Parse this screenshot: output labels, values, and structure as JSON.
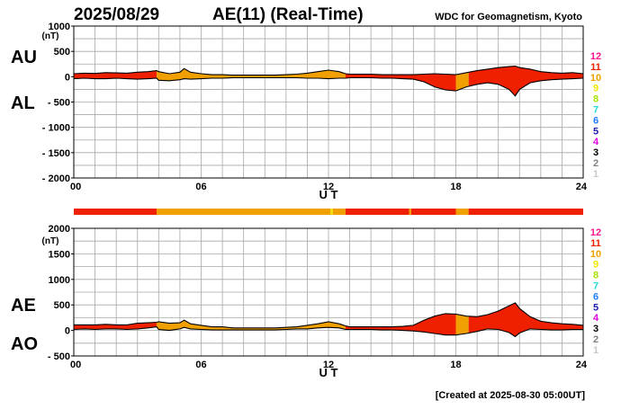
{
  "header": {
    "date": "2025/08/29",
    "title": "AE(11) (Real-Time)",
    "source": "WDC for Geomagnetism, Kyoto"
  },
  "footer": {
    "created": "[Created at 2025-08-30 05:00UT]"
  },
  "colors": {
    "grid": "#a8a8a8",
    "level_10": "#f0a000",
    "level_11": "#ee2000",
    "outline": "#000000"
  },
  "legend": {
    "levels": [
      {
        "label": "12",
        "color": "#ff1493"
      },
      {
        "label": "11",
        "color": "#ee2000"
      },
      {
        "label": "10",
        "color": "#f0a000"
      },
      {
        "label": "9",
        "color": "#f2e600"
      },
      {
        "label": "8",
        "color": "#a8e000"
      },
      {
        "label": "7",
        "color": "#22d8d8"
      },
      {
        "label": "6",
        "color": "#1e7bff"
      },
      {
        "label": "5",
        "color": "#2020b0"
      },
      {
        "label": "4",
        "color": "#e000e0"
      },
      {
        "label": "3",
        "color": "#000000"
      },
      {
        "label": "2",
        "color": "#808080"
      },
      {
        "label": "1",
        "color": "#c8c8c8"
      }
    ]
  },
  "station_bar": [
    {
      "from": 0,
      "to": 3.9,
      "level": 11
    },
    {
      "from": 3.9,
      "to": 12.1,
      "level": 10
    },
    {
      "from": 12.1,
      "to": 12.2,
      "level": 9
    },
    {
      "from": 12.2,
      "to": 12.8,
      "level": 10
    },
    {
      "from": 12.8,
      "to": 15.8,
      "level": 11
    },
    {
      "from": 15.8,
      "to": 15.9,
      "level": 10
    },
    {
      "from": 15.9,
      "to": 18.0,
      "level": 11
    },
    {
      "from": 18.0,
      "to": 18.6,
      "level": 10
    },
    {
      "from": 18.6,
      "to": 24,
      "level": 11
    }
  ],
  "chart_data": [
    {
      "type": "area",
      "name": "AU/AL",
      "series_labels": [
        "AU",
        "AL"
      ],
      "yaxis_unit": "(nT)",
      "ylim": [
        -2000,
        1000
      ],
      "yticks": [
        1000,
        500,
        0,
        -500,
        -1000,
        -1500,
        -2000
      ],
      "ytick_labels": [
        "1000",
        "500",
        "0",
        "- 500",
        "- 1000",
        "- 1500",
        "- 2000"
      ],
      "xlim": [
        0,
        24
      ],
      "xticks": [
        0,
        6,
        12,
        18,
        24
      ],
      "xtick_labels": [
        "00",
        "06",
        "12",
        "18",
        "24"
      ],
      "xlabel": "U T",
      "x": [
        0,
        0.5,
        1,
        1.5,
        2,
        2.5,
        3,
        3.5,
        3.9,
        4,
        4.5,
        5,
        5.2,
        5.5,
        6,
        6.5,
        7,
        7.5,
        8,
        8.5,
        9,
        9.5,
        10,
        10.5,
        11,
        11.5,
        12,
        12.5,
        12.8,
        13,
        13.5,
        14,
        14.5,
        15,
        15.5,
        16,
        16.5,
        17,
        17.5,
        18,
        18.5,
        19,
        19.5,
        20,
        20.5,
        20.8,
        21,
        21.5,
        22,
        22.5,
        23,
        23.5,
        24
      ],
      "upper": [
        60,
        70,
        65,
        80,
        75,
        70,
        90,
        100,
        120,
        100,
        60,
        90,
        160,
        90,
        60,
        40,
        40,
        30,
        30,
        30,
        30,
        30,
        40,
        50,
        70,
        100,
        130,
        100,
        60,
        50,
        50,
        50,
        40,
        40,
        40,
        40,
        50,
        60,
        50,
        40,
        80,
        120,
        150,
        180,
        200,
        210,
        180,
        150,
        100,
        80,
        70,
        80,
        60
      ],
      "lower": [
        -40,
        -30,
        -40,
        -40,
        -30,
        -40,
        -50,
        -40,
        -30,
        -70,
        -80,
        -60,
        -40,
        -50,
        -40,
        -30,
        -30,
        -20,
        -20,
        -20,
        -20,
        -20,
        -20,
        -20,
        -30,
        -30,
        -40,
        -30,
        -30,
        -20,
        -20,
        -20,
        -30,
        -30,
        -40,
        -50,
        -100,
        -200,
        -260,
        -280,
        -200,
        -150,
        -120,
        -150,
        -250,
        -380,
        -250,
        -120,
        -80,
        -60,
        -50,
        -40,
        -30
      ],
      "segments": [
        {
          "from": 0,
          "to": 3.9,
          "level": 11
        },
        {
          "from": 3.9,
          "to": 12.8,
          "level": 10
        },
        {
          "from": 12.8,
          "to": 18.0,
          "level": 11
        },
        {
          "from": 18.0,
          "to": 18.6,
          "level": 10
        },
        {
          "from": 18.6,
          "to": 24,
          "level": 11
        }
      ]
    },
    {
      "type": "area",
      "name": "AE/AO",
      "series_labels": [
        "AE",
        "AO"
      ],
      "yaxis_unit": "(nT)",
      "ylim": [
        -500,
        2000
      ],
      "yticks": [
        2000,
        1500,
        1000,
        500,
        0,
        -500
      ],
      "ytick_labels": [
        "2000",
        "1500",
        "1000",
        "500",
        "0",
        "- 500"
      ],
      "xlim": [
        0,
        24
      ],
      "xticks": [
        0,
        6,
        12,
        18,
        24
      ],
      "xtick_labels": [
        "00",
        "06",
        "12",
        "18",
        "24"
      ],
      "xlabel": "U T",
      "x": [
        0,
        0.5,
        1,
        1.5,
        2,
        2.5,
        3,
        3.5,
        3.9,
        4,
        4.5,
        5,
        5.2,
        5.5,
        6,
        6.5,
        7,
        7.5,
        8,
        8.5,
        9,
        9.5,
        10,
        10.5,
        11,
        11.5,
        12,
        12.5,
        12.8,
        13,
        13.5,
        14,
        14.5,
        15,
        15.5,
        16,
        16.5,
        17,
        17.5,
        18,
        18.5,
        19,
        19.5,
        20,
        20.5,
        20.8,
        21,
        21.5,
        22,
        22.5,
        23,
        23.5,
        24
      ],
      "upper": [
        110,
        110,
        110,
        120,
        110,
        110,
        140,
        150,
        160,
        170,
        140,
        150,
        200,
        130,
        100,
        70,
        70,
        50,
        50,
        50,
        50,
        50,
        60,
        70,
        100,
        130,
        170,
        130,
        90,
        70,
        70,
        70,
        70,
        70,
        80,
        100,
        200,
        280,
        330,
        320,
        280,
        270,
        310,
        380,
        480,
        540,
        430,
        270,
        180,
        150,
        130,
        120,
        100
      ],
      "lower": [
        20,
        30,
        20,
        30,
        30,
        20,
        30,
        50,
        70,
        20,
        0,
        30,
        60,
        30,
        20,
        10,
        10,
        10,
        10,
        10,
        10,
        10,
        20,
        30,
        30,
        50,
        60,
        50,
        20,
        20,
        20,
        20,
        10,
        10,
        0,
        -10,
        -30,
        -60,
        -90,
        -90,
        -60,
        -20,
        30,
        20,
        -40,
        -120,
        -50,
        30,
        20,
        10,
        10,
        20,
        20
      ],
      "segments": [
        {
          "from": 0,
          "to": 3.9,
          "level": 11
        },
        {
          "from": 3.9,
          "to": 12.8,
          "level": 10
        },
        {
          "from": 12.8,
          "to": 18.0,
          "level": 11
        },
        {
          "from": 18.0,
          "to": 18.6,
          "level": 10
        },
        {
          "from": 18.6,
          "to": 24,
          "level": 11
        }
      ]
    }
  ]
}
